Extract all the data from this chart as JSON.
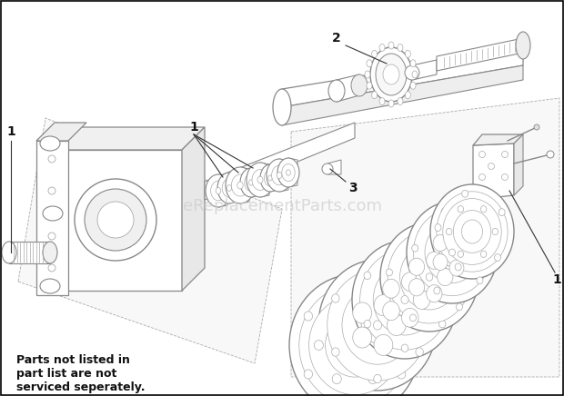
{
  "background_color": "#ffffff",
  "border_color": "#000000",
  "watermark_text": "eReplacementParts.com",
  "watermark_color": "#cccccc",
  "watermark_fontsize": 13,
  "note_text": "Parts not listed in\npart list are not\nserviced seperately.",
  "note_fontsize": 9,
  "line_color": "#aaaaaa",
  "line_color_dark": "#888888",
  "label_color": "#111111",
  "label_fontsize": 10
}
